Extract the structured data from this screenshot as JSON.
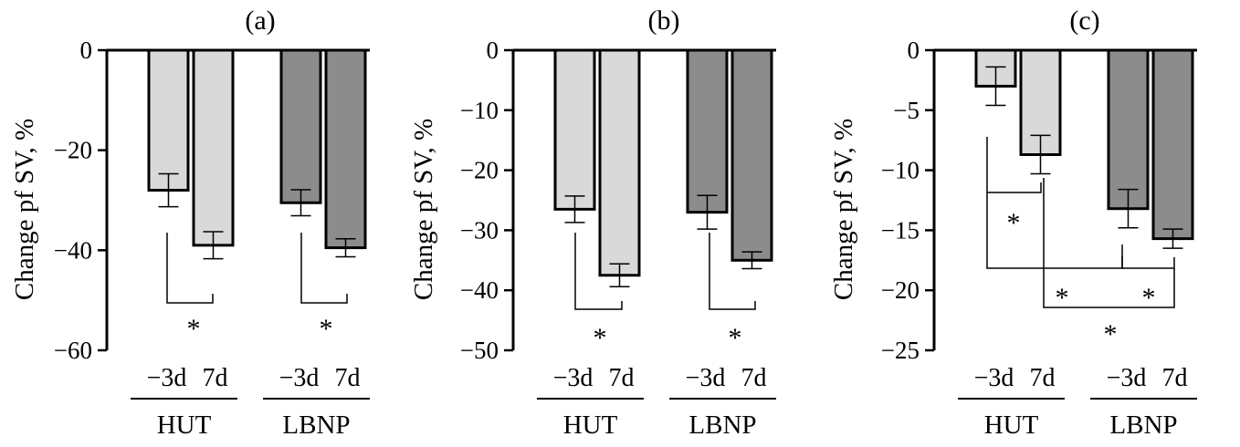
{
  "chart_data": [
    {
      "type": "bar",
      "title": "(a)",
      "ylabel": "Change pf SV, %",
      "ylim": [
        -60,
        0
      ],
      "yticks": [
        0,
        -20,
        -40,
        -60
      ],
      "ytick_labels": [
        "0",
        "−20",
        "−40",
        "−60"
      ],
      "groups": [
        "HUT",
        "LBNP"
      ],
      "categories": [
        "−3d",
        "7d",
        "−3d",
        "7d"
      ],
      "values": [
        -28.0,
        -39.0,
        -30.5,
        -39.5
      ],
      "errors": [
        3.3,
        2.7,
        2.6,
        1.8
      ],
      "colors": [
        "#d9d9d9",
        "#d9d9d9",
        "#8c8c8c",
        "#8c8c8c"
      ],
      "significance": [
        {
          "from": 0,
          "to": 1,
          "label": "*"
        },
        {
          "from": 2,
          "to": 3,
          "label": "*"
        }
      ]
    },
    {
      "type": "bar",
      "title": "(b)",
      "ylabel": "Change pf SV, %",
      "ylim": [
        -50,
        0
      ],
      "yticks": [
        0,
        -10,
        -20,
        -30,
        -40,
        -50
      ],
      "ytick_labels": [
        "0",
        "−10",
        "−20",
        "−30",
        "−40",
        "−50"
      ],
      "groups": [
        "HUT",
        "LBNP"
      ],
      "categories": [
        "−3d",
        "7d",
        "−3d",
        "7d"
      ],
      "values": [
        -26.5,
        -37.5,
        -27.0,
        -35.0
      ],
      "errors": [
        2.2,
        1.9,
        2.8,
        1.4
      ],
      "colors": [
        "#d9d9d9",
        "#d9d9d9",
        "#8c8c8c",
        "#8c8c8c"
      ],
      "significance": [
        {
          "from": 0,
          "to": 1,
          "label": "*"
        },
        {
          "from": 2,
          "to": 3,
          "label": "*"
        }
      ]
    },
    {
      "type": "bar",
      "title": "(c)",
      "ylabel": "Change pf SV, %",
      "ylim": [
        -25,
        0
      ],
      "yticks": [
        0,
        -5,
        -10,
        -15,
        -20,
        -25
      ],
      "ytick_labels": [
        "0",
        "−5",
        "−10",
        "−15",
        "−20",
        "−25"
      ],
      "groups": [
        "HUT",
        "LBNP"
      ],
      "categories": [
        "−3d",
        "7d",
        "−3d",
        "7d"
      ],
      "values": [
        -3.0,
        -8.7,
        -13.2,
        -15.7
      ],
      "errors": [
        1.6,
        1.6,
        1.6,
        0.8
      ],
      "colors": [
        "#d9d9d9",
        "#d9d9d9",
        "#8c8c8c",
        "#8c8c8c"
      ],
      "significance": [
        {
          "from": 0,
          "to": 1,
          "label": "*"
        },
        {
          "from": 0,
          "to": 2,
          "label": "*"
        },
        {
          "from": 2,
          "to": 3,
          "label": "*"
        },
        {
          "from": 1,
          "to": 3,
          "label": "*"
        }
      ]
    }
  ]
}
